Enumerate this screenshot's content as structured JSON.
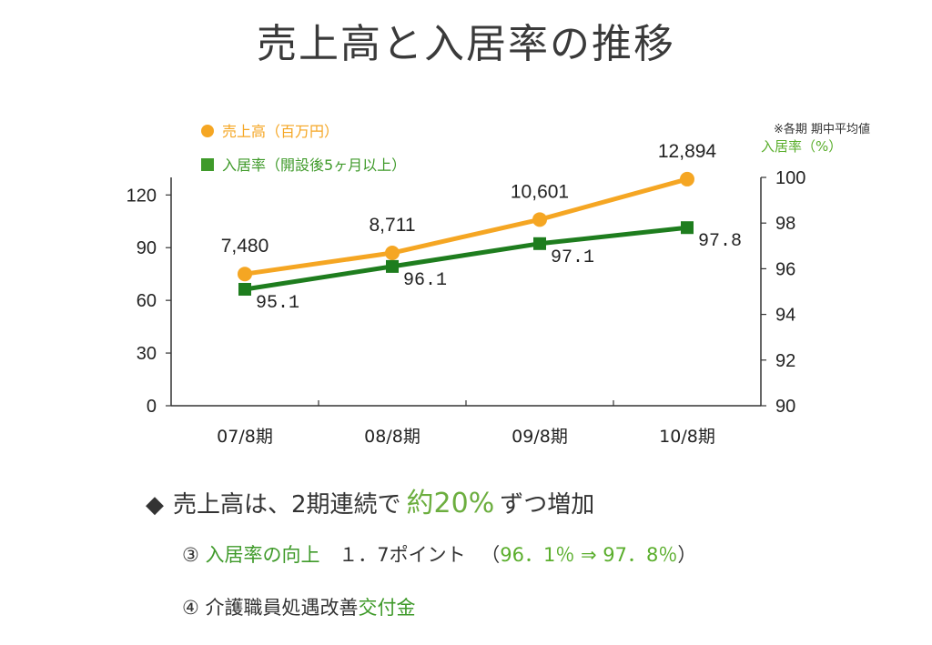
{
  "title": "売上高と入居率の推移",
  "chart_data": {
    "type": "line",
    "categories": [
      "07/8期",
      "08/8期",
      "09/8期",
      "10/8期"
    ],
    "series": [
      {
        "name": "売上高（百万円）",
        "axis": "left",
        "values": [
          75,
          87,
          106,
          129
        ],
        "labels": [
          "7,480",
          "8,711",
          "10,601",
          "12,894"
        ],
        "color": "#f5a623",
        "marker": "circle"
      },
      {
        "name": "入居率（開設後5ヶ月以上）",
        "axis": "right",
        "values": [
          95.1,
          96.1,
          97.1,
          97.8
        ],
        "labels": [
          "95.1",
          "96.1",
          "97.1",
          "97.8"
        ],
        "color": "#1e7d1e",
        "marker": "square"
      }
    ],
    "y_left": {
      "ylim": [
        0,
        130
      ],
      "ticks": [
        "0",
        "30",
        "60",
        "90",
        "120"
      ],
      "tick_values": [
        0,
        30,
        60,
        90,
        120
      ]
    },
    "y_right": {
      "label": "入居率（%）",
      "ylim": [
        90,
        100
      ],
      "ticks": [
        "90",
        "92",
        "94",
        "96",
        "98",
        "100"
      ],
      "tick_values": [
        90,
        92,
        94,
        96,
        98,
        100
      ]
    },
    "note": "※各期 期中平均値",
    "grid": false,
    "legend_placement": "top-left"
  },
  "bullets": {
    "b1_mark": "◆",
    "b1_text": "売上高は、2期連続で",
    "b1_highlight": "約20%",
    "b1_tail": "ずつ増加",
    "b2_num": "③",
    "b2_highlight": "入居率の向上",
    "b2_text": "１．7ポイント",
    "b2_paren_open": "（",
    "b2_paren_value": "96．1％ ⇒ 97．8％",
    "b2_paren_close": "）",
    "b3_num": "④",
    "b3_text": "介護職員処遇改善",
    "b3_highlight": "交付金"
  }
}
